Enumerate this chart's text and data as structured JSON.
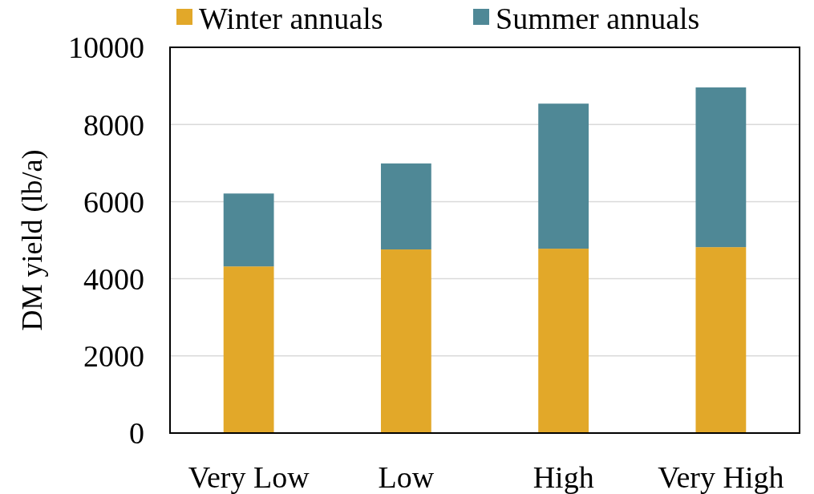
{
  "chart_data": {
    "type": "bar",
    "ylabel": "DM yield (lb/a)",
    "categories": [
      "Very Low",
      "Low",
      "High",
      "Very High"
    ],
    "stacked": true,
    "series": [
      {
        "name": "Winter annuals",
        "color": "#e2a829",
        "values": [
          4320,
          4760,
          4780,
          4820
        ]
      },
      {
        "name": "Summer annuals",
        "color": "#4f8896",
        "values": [
          1890,
          2230,
          3760,
          4140
        ]
      }
    ],
    "ylim": [
      0,
      10000
    ],
    "yticks": [
      0,
      2000,
      4000,
      6000,
      8000,
      10000
    ],
    "grid": "y",
    "legend": "top"
  }
}
